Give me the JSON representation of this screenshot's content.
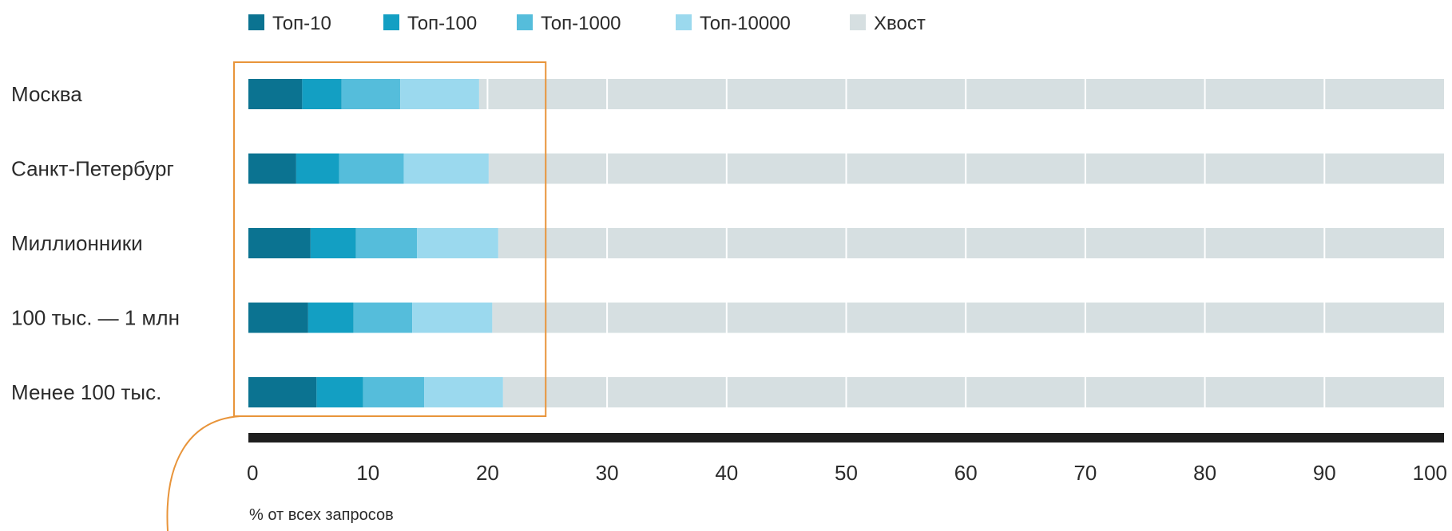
{
  "chart_data": {
    "type": "bar",
    "orientation": "horizontal",
    "stacked": true,
    "categories": [
      "Москва",
      "Санкт-Петербург",
      "Миллионники",
      "100 тыс. — 1 млн",
      "Менее 100 тыс."
    ],
    "series": [
      {
        "name": "Топ-10",
        "color": "#0b7391",
        "values": [
          4.5,
          4.0,
          5.2,
          5.0,
          5.7
        ]
      },
      {
        "name": "Топ-100",
        "color": "#139fc3",
        "values": [
          3.3,
          3.6,
          3.8,
          3.8,
          3.9
        ]
      },
      {
        "name": "Топ-1000",
        "color": "#55bddb",
        "values": [
          4.9,
          5.4,
          5.1,
          4.9,
          5.1
        ]
      },
      {
        "name": "Топ-10000",
        "color": "#9bd9ee",
        "values": [
          6.6,
          7.1,
          6.8,
          6.7,
          6.6
        ]
      },
      {
        "name": "Хвост",
        "color": "#d6dfe1",
        "values": [
          80.7,
          79.9,
          79.1,
          79.6,
          78.7
        ]
      }
    ],
    "xlim": [
      0,
      100
    ],
    "xticks": [
      0,
      10,
      20,
      30,
      40,
      50,
      60,
      70,
      80,
      90,
      100
    ],
    "xlabel": "% от всех запросов",
    "grid": true,
    "legend_position": "top",
    "highlight_range": [
      0,
      25
    ],
    "highlight_color": "#e8943a",
    "axis_color": "#1e1e1e"
  }
}
